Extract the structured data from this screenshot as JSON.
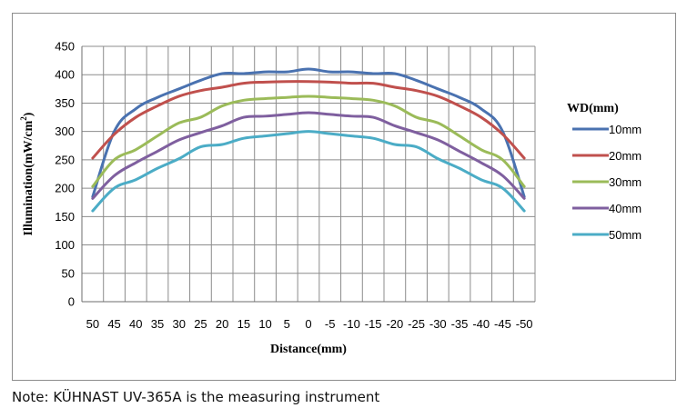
{
  "chart_data": {
    "type": "line",
    "title": "",
    "xlabel": "Distance(mm)",
    "ylabel": "Illumination(mW/cm²)",
    "ylabel_parts": {
      "main": "Illumination(mW/cm",
      "sup": "2",
      "end": ")"
    },
    "ylim": [
      0,
      450
    ],
    "yticks": [
      0,
      50,
      100,
      150,
      200,
      250,
      300,
      350,
      400,
      450
    ],
    "categories": [
      "50",
      "45",
      "40",
      "35",
      "30",
      "25",
      "20",
      "15",
      "10",
      "5",
      "0",
      "-5",
      "-10",
      "-15",
      "-20",
      "-25",
      "-30",
      "-35",
      "-40",
      "-45",
      "-50"
    ],
    "grid": true,
    "legend_title": "WD(mm)",
    "legend_position": "right",
    "series": [
      {
        "name": "10mm",
        "color": "#4a72b0",
        "values": [
          185,
          300,
          340,
          360,
          375,
          390,
          402,
          402,
          405,
          405,
          410,
          405,
          405,
          402,
          402,
          390,
          375,
          360,
          340,
          300,
          185
        ]
      },
      {
        "name": "20mm",
        "color": "#c0504d",
        "values": [
          253,
          295,
          325,
          345,
          362,
          372,
          378,
          385,
          387,
          388,
          388,
          387,
          385,
          385,
          378,
          372,
          362,
          345,
          325,
          295,
          253
        ]
      },
      {
        "name": "30mm",
        "color": "#9bbb59",
        "values": [
          203,
          250,
          268,
          292,
          315,
          325,
          345,
          355,
          358,
          360,
          362,
          360,
          358,
          355,
          345,
          325,
          315,
          292,
          268,
          250,
          203
        ]
      },
      {
        "name": "40mm",
        "color": "#7f5f9f",
        "values": [
          182,
          222,
          245,
          265,
          285,
          298,
          310,
          325,
          327,
          330,
          333,
          330,
          327,
          325,
          310,
          298,
          285,
          265,
          245,
          222,
          182
        ]
      },
      {
        "name": "50mm",
        "color": "#4bacc6",
        "values": [
          160,
          200,
          215,
          235,
          252,
          273,
          277,
          288,
          292,
          296,
          300,
          296,
          292,
          288,
          277,
          273,
          252,
          235,
          215,
          200,
          160
        ]
      }
    ]
  },
  "note": "Note: KÜHNAST UV-365A is the measuring instrument"
}
